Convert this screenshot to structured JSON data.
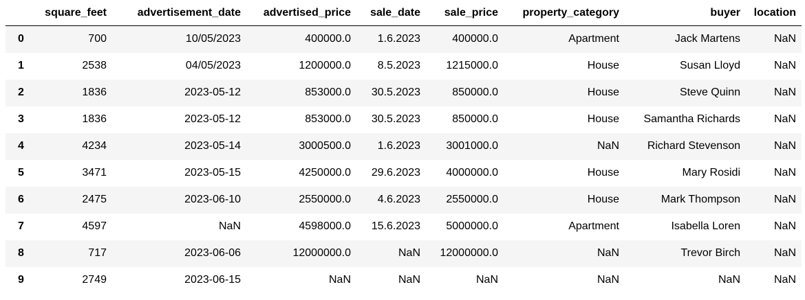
{
  "table": {
    "columns": [
      "square_feet",
      "advertisement_date",
      "advertised_price",
      "sale_date",
      "sale_price",
      "property_category",
      "buyer",
      "location"
    ],
    "rows": [
      {
        "index": "0",
        "cells": [
          "700",
          "10/05/2023",
          "400000.0",
          "1.6.2023",
          "400000.0",
          "Apartment",
          "Jack Martens",
          "NaN"
        ]
      },
      {
        "index": "1",
        "cells": [
          "2538",
          "04/05/2023",
          "1200000.0",
          "8.5.2023",
          "1215000.0",
          "House",
          "Susan Lloyd",
          "NaN"
        ]
      },
      {
        "index": "2",
        "cells": [
          "1836",
          "2023-05-12",
          "853000.0",
          "30.5.2023",
          "850000.0",
          "House",
          "Steve Quinn",
          "NaN"
        ]
      },
      {
        "index": "3",
        "cells": [
          "1836",
          "2023-05-12",
          "853000.0",
          "30.5.2023",
          "850000.0",
          "House",
          "Samantha Richards",
          "NaN"
        ]
      },
      {
        "index": "4",
        "cells": [
          "4234",
          "2023-05-14",
          "3000500.0",
          "1.6.2023",
          "3001000.0",
          "NaN",
          "Richard Stevenson",
          "NaN"
        ]
      },
      {
        "index": "5",
        "cells": [
          "3471",
          "2023-05-15",
          "4250000.0",
          "29.6.2023",
          "4000000.0",
          "House",
          "Mary Rosidi",
          "NaN"
        ]
      },
      {
        "index": "6",
        "cells": [
          "2475",
          "2023-06-10",
          "2550000.0",
          "4.6.2023",
          "2550000.0",
          "House",
          "Mark Thompson",
          "NaN"
        ]
      },
      {
        "index": "7",
        "cells": [
          "4597",
          "NaN",
          "4598000.0",
          "15.6.2023",
          "5000000.0",
          "Apartment",
          "Isabella Loren",
          "NaN"
        ]
      },
      {
        "index": "8",
        "cells": [
          "717",
          "2023-06-06",
          "12000000.0",
          "NaN",
          "12000000.0",
          "NaN",
          "Trevor Birch",
          "NaN"
        ]
      },
      {
        "index": "9",
        "cells": [
          "2749",
          "2023-06-15",
          "NaN",
          "NaN",
          "NaN",
          "NaN",
          "NaN",
          "NaN"
        ]
      }
    ]
  }
}
